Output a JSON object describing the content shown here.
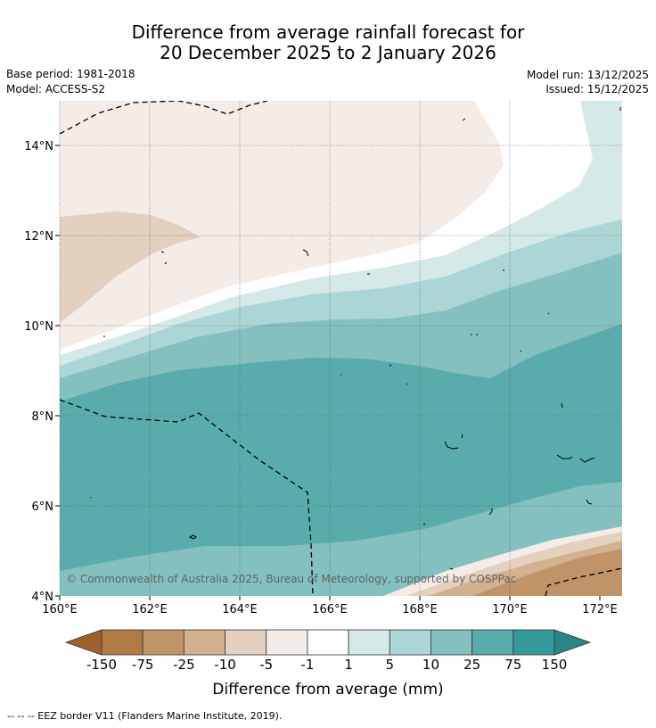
{
  "title_line1": "Difference from average rainfall forecast for",
  "title_line2": "20 December 2025 to 2 January 2026",
  "base_period": "Base period: 1981-2018",
  "model": "Model: ACCESS-S2",
  "model_run": "Model run: 13/12/2025",
  "issued": "Issued: 15/12/2025",
  "copyright": "© Commonwealth of Australia 2025, Bureau of Meteorology, supported by COSPPac",
  "lat_labels": [
    "14°N",
    "12°N",
    "10°N",
    "8°N",
    "6°N",
    "4°N"
  ],
  "lon_labels": [
    "160°E",
    "162°E",
    "164°E",
    "166°E",
    "168°E",
    "170°E",
    "172°E"
  ],
  "colorbar": {
    "title": "Difference from average (mm)",
    "tick_labels": [
      "-150",
      "-75",
      "-25",
      "-10",
      "-5",
      "-1",
      "1",
      "5",
      "10",
      "25",
      "75",
      "150"
    ],
    "colors": [
      "#a0622d",
      "#b07a45",
      "#c09468",
      "#d3b18f",
      "#e4d0bf",
      "#f4ece7",
      "#ffffff",
      "#d4e9e8",
      "#acd6d5",
      "#84c0c0",
      "#5aacac",
      "#359a9a",
      "#2a8585"
    ]
  },
  "legend_note": "-- -- -- EEZ border V11 (Flanders Marine Institute, 2019)."
}
